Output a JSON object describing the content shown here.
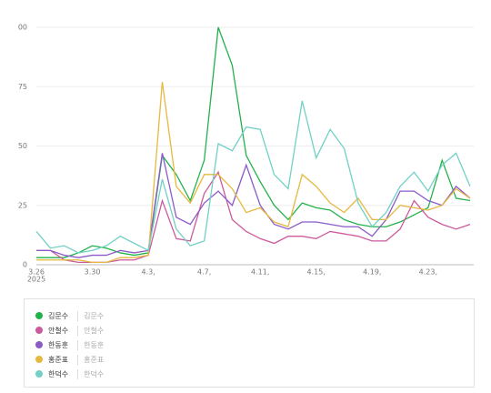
{
  "chart_data": {
    "type": "line",
    "categories": [
      "3.26",
      null,
      null,
      null,
      "3.30",
      null,
      null,
      null,
      "4.3,",
      null,
      null,
      null,
      "4.7,",
      null,
      null,
      null,
      "4.11,",
      null,
      null,
      null,
      "4.15,",
      null,
      null,
      null,
      "4.19,",
      null,
      null,
      null,
      "4.23,",
      null,
      null,
      null
    ],
    "x_year_label": "2025",
    "ylim": [
      0,
      100
    ],
    "yticks": [
      0,
      25,
      50,
      75,
      {
        "value": 100,
        "label": "00"
      }
    ],
    "grid": true,
    "series": [
      {
        "name": "김문수",
        "color": "#22b24c",
        "values": [
          3,
          3,
          3,
          5,
          8,
          7,
          5,
          4,
          5,
          46,
          38,
          27,
          44,
          100,
          84,
          46,
          35,
          25,
          19,
          26,
          24,
          23,
          19,
          17,
          16,
          16,
          18,
          21,
          24,
          44,
          28,
          27
        ]
      },
      {
        "name": "안철수",
        "color": "#cc5a9c",
        "values": [
          6,
          6,
          2,
          1,
          1,
          1,
          2,
          2,
          4,
          27,
          11,
          10,
          30,
          39,
          19,
          14,
          11,
          9,
          12,
          12,
          11,
          14,
          13,
          12,
          10,
          10,
          15,
          27,
          20,
          17,
          15,
          17
        ]
      },
      {
        "name": "한동훈",
        "color": "#8b5ac9",
        "values": [
          6,
          6,
          4,
          3,
          4,
          4,
          6,
          5,
          6,
          47,
          20,
          17,
          26,
          31,
          25,
          42,
          25,
          17,
          15,
          18,
          18,
          17,
          16,
          16,
          12,
          19,
          31,
          31,
          27,
          25,
          33,
          28
        ]
      },
      {
        "name": "홍준표",
        "color": "#e6b83f",
        "values": [
          2,
          2,
          2,
          2,
          1,
          1,
          3,
          3,
          4,
          77,
          33,
          26,
          38,
          38,
          32,
          22,
          24,
          18,
          16,
          38,
          33,
          26,
          22,
          28,
          19,
          19,
          25,
          24,
          23,
          25,
          32,
          28
        ]
      },
      {
        "name": "한덕수",
        "color": "#72d0c5",
        "values": [
          14,
          7,
          8,
          5,
          6,
          8,
          12,
          9,
          6,
          36,
          15,
          8,
          10,
          51,
          48,
          58,
          57,
          38,
          32,
          69,
          45,
          57,
          49,
          26,
          16,
          22,
          33,
          39,
          31,
          42,
          47,
          33
        ]
      }
    ]
  }
}
